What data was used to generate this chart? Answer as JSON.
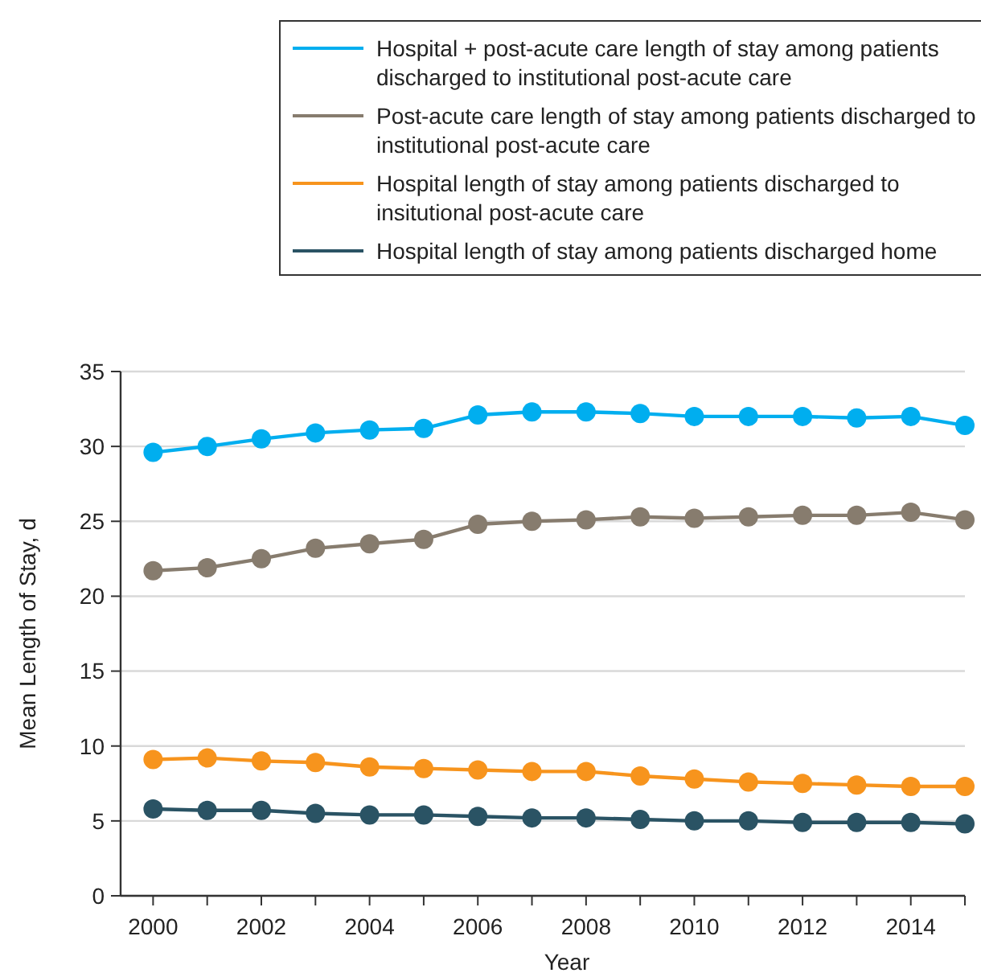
{
  "chart_data": {
    "type": "line",
    "xlabel": "Year",
    "ylabel": "Mean Length of Stay, d",
    "x": [
      2000,
      2001,
      2002,
      2003,
      2004,
      2005,
      2006,
      2007,
      2008,
      2009,
      2010,
      2011,
      2012,
      2013,
      2014,
      2015
    ],
    "series": [
      {
        "name": "Hospital + post-acute care length of stay among patients discharged to institutional post-acute care",
        "color": "#00aeef",
        "values": [
          29.6,
          30.0,
          30.5,
          30.9,
          31.1,
          31.2,
          32.1,
          32.3,
          32.3,
          32.2,
          32.0,
          32.0,
          32.0,
          31.9,
          32.0,
          31.4
        ]
      },
      {
        "name": "Post-acute care length of stay among patients discharged to institutional post-acute care",
        "color": "#877c6e",
        "values": [
          21.7,
          21.9,
          22.5,
          23.2,
          23.5,
          23.8,
          24.8,
          25.0,
          25.1,
          25.3,
          25.2,
          25.3,
          25.4,
          25.4,
          25.6,
          25.1
        ]
      },
      {
        "name": "Hospital length of stay among patients discharged to insitutional post-acute care",
        "color": "#f7941d",
        "values": [
          9.1,
          9.2,
          9.0,
          8.9,
          8.6,
          8.5,
          8.4,
          8.3,
          8.3,
          8.0,
          7.8,
          7.6,
          7.5,
          7.4,
          7.3,
          7.3
        ]
      },
      {
        "name": "Hospital length of stay among patients discharged home",
        "color": "#2a5364",
        "values": [
          5.8,
          5.7,
          5.7,
          5.5,
          5.4,
          5.4,
          5.3,
          5.2,
          5.2,
          5.1,
          5.0,
          5.0,
          4.9,
          4.9,
          4.9,
          4.8
        ]
      }
    ],
    "xlim": [
      1999.4,
      2015
    ],
    "xticks": [
      2000,
      {
        "value": 2001,
        "label": null
      },
      2002,
      {
        "value": 2003,
        "label": null
      },
      2004,
      {
        "value": 2005,
        "label": null
      },
      2006,
      {
        "value": 2007,
        "label": null
      },
      2008,
      {
        "value": 2009,
        "label": null
      },
      2010,
      {
        "value": 2011,
        "label": null
      },
      2012,
      {
        "value": 2013,
        "label": null
      },
      2014,
      {
        "value": 2015,
        "label": null
      }
    ],
    "ylim": [
      0,
      35
    ],
    "yticks": [
      0,
      5,
      10,
      15,
      20,
      25,
      30,
      35
    ],
    "grid": "y",
    "legend": "top right",
    "marker": "circle",
    "line_style": "solid"
  }
}
